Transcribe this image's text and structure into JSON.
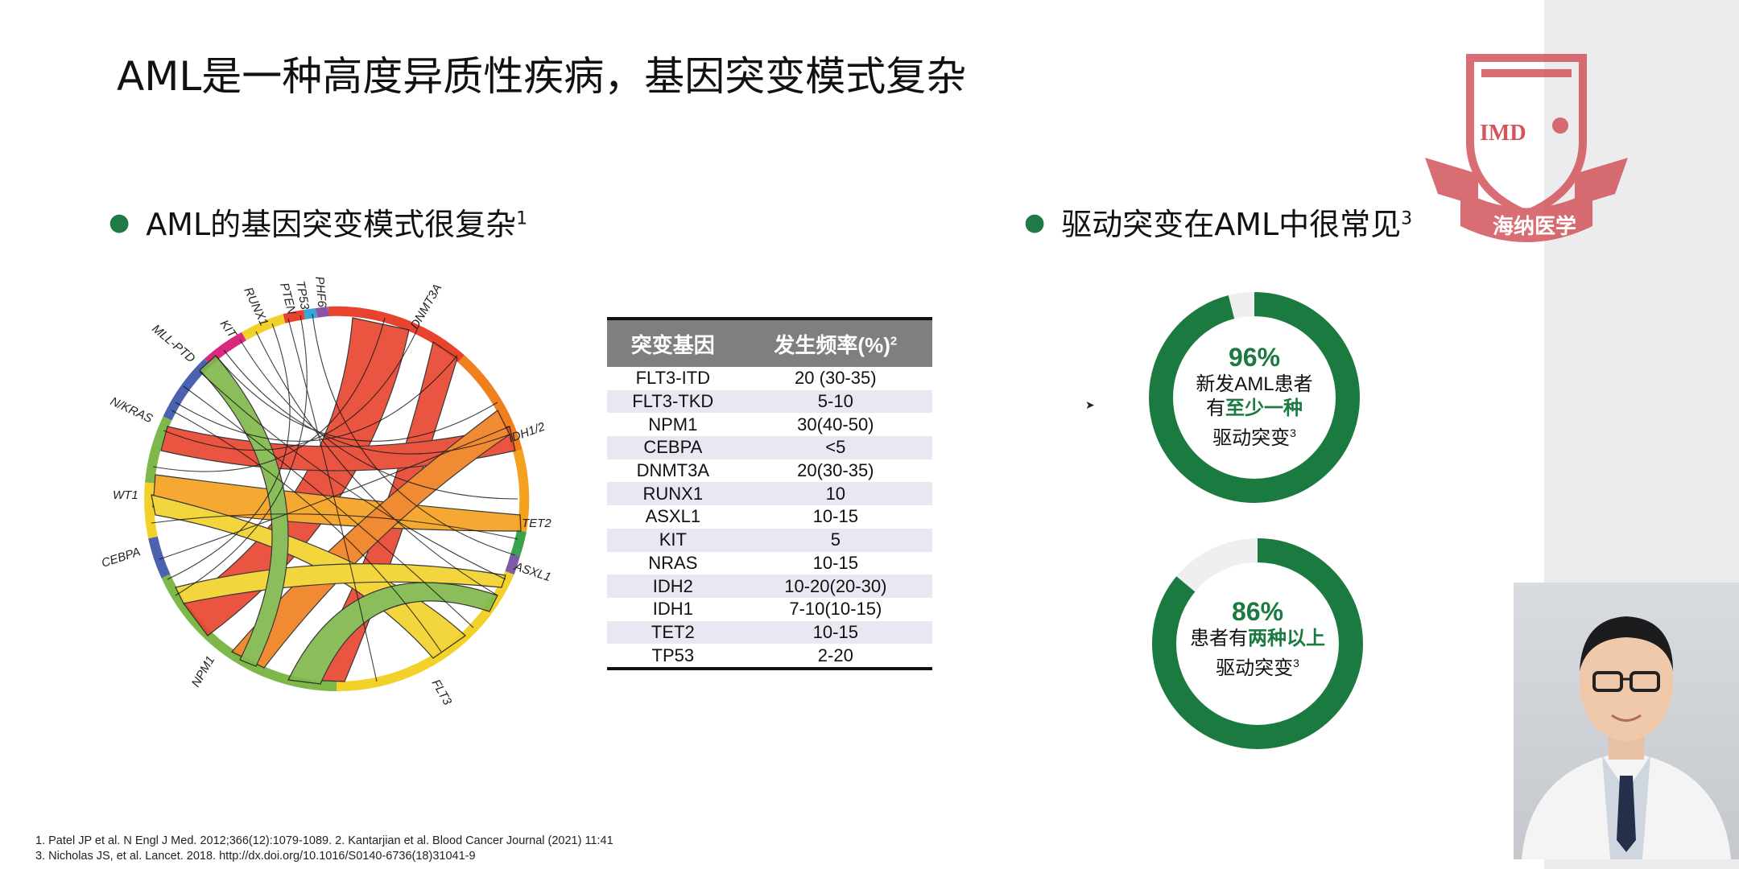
{
  "title": "AML是一种高度异质性疾病，基因突变模式复杂",
  "left_bullet": {
    "text": "AML的基因突变模式很复杂",
    "sup": "1"
  },
  "right_bullet": {
    "text": "驱动突变在AML中很常见",
    "sup": "3"
  },
  "circos": {
    "labels": [
      "DNMT3A",
      "IDH1/2",
      "TET2",
      "ASXL1",
      "FLT3",
      "NPM1",
      "CEBPA",
      "WT1",
      "N/KRAS",
      "MLL-PTD",
      "KIT",
      "RUNX1",
      "PTEN",
      "TP53",
      "PHF6"
    ]
  },
  "table": {
    "header_gene": "突变基因",
    "header_freq": "发生频率(%)",
    "header_freq_sup": "2",
    "rows": [
      {
        "gene": "FLT3-ITD",
        "freq": "20 (30-35)"
      },
      {
        "gene": "FLT3-TKD",
        "freq": "5-10"
      },
      {
        "gene": "NPM1",
        "freq": "30(40-50)"
      },
      {
        "gene": "CEBPA",
        "freq": "<5"
      },
      {
        "gene": "DNMT3A",
        "freq": "20(30-35)"
      },
      {
        "gene": "RUNX1",
        "freq": "10"
      },
      {
        "gene": "ASXL1",
        "freq": "10-15"
      },
      {
        "gene": "KIT",
        "freq": "5"
      },
      {
        "gene": "NRAS",
        "freq": "10-15"
      },
      {
        "gene": "IDH2",
        "freq": "10-20(20-30)"
      },
      {
        "gene": "IDH1",
        "freq": "7-10(10-15)"
      },
      {
        "gene": "TET2",
        "freq": "10-15"
      },
      {
        "gene": "TP53",
        "freq": "2-20"
      }
    ]
  },
  "donut1": {
    "value": 0.96,
    "pct": "96%",
    "line1": "新发AML患者",
    "line2_prefix": "有",
    "line2_highlight": "至少一种",
    "line3": "驱动突变",
    "sup": "3"
  },
  "donut2": {
    "value": 0.86,
    "pct": "86%",
    "line1_prefix": "患者有",
    "line1_highlight": "两种以上",
    "line2": "驱动突变",
    "sup": "3"
  },
  "references": {
    "line1": "1. Patel JP et al. N Engl J Med. 2012;366(12):1079-1089.  2. Kantarjian et al. Blood Cancer Journal (2021) 11:41",
    "line2": "3. Nicholas JS, et al. Lancet. 2018. http://dx.doi.org/10.1016/S0140-6736(18)31041-9"
  },
  "logo": {
    "abbr": "IMD",
    "name": "海纳医学",
    "color": "#d2555b"
  },
  "colors": {
    "accent_green": "#1a7a40",
    "donut_track": "#efefef",
    "table_header": "#7f7f81",
    "table_stripe": "#e8e8f2"
  }
}
